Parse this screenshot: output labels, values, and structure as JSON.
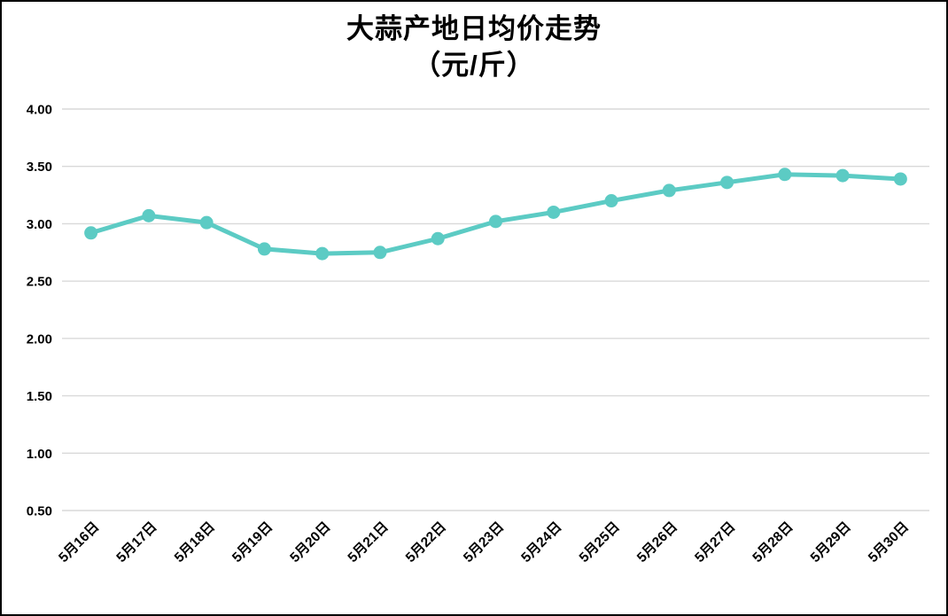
{
  "chart_data": {
    "type": "line",
    "title": "大蒜产地日均价走势",
    "subtitle": "（元/斤）",
    "categories": [
      "5月16日",
      "5月17日",
      "5月18日",
      "5月19日",
      "5月20日",
      "5月21日",
      "5月22日",
      "5月23日",
      "5月24日",
      "5月25日",
      "5月26日",
      "5月27日",
      "5月28日",
      "5月29日",
      "5月30日"
    ],
    "values": [
      2.92,
      3.07,
      3.01,
      2.78,
      2.74,
      2.75,
      2.87,
      3.02,
      3.1,
      3.2,
      3.29,
      3.36,
      3.43,
      3.42,
      3.39
    ],
    "ylim": [
      0.5,
      4.0
    ],
    "ytick_step": 0.5,
    "ytick_labels": [
      "4.00",
      "3.50",
      "3.00",
      "2.50",
      "2.00",
      "1.50",
      "1.00",
      "0.50"
    ],
    "xlabel": "",
    "ylabel": "",
    "grid": true,
    "legend": false,
    "marker": "circle",
    "line_color": "#5CCBC4",
    "grid_color": "#D9D9D9",
    "text_color": "#000000",
    "background_color": "#FFFFFF"
  }
}
